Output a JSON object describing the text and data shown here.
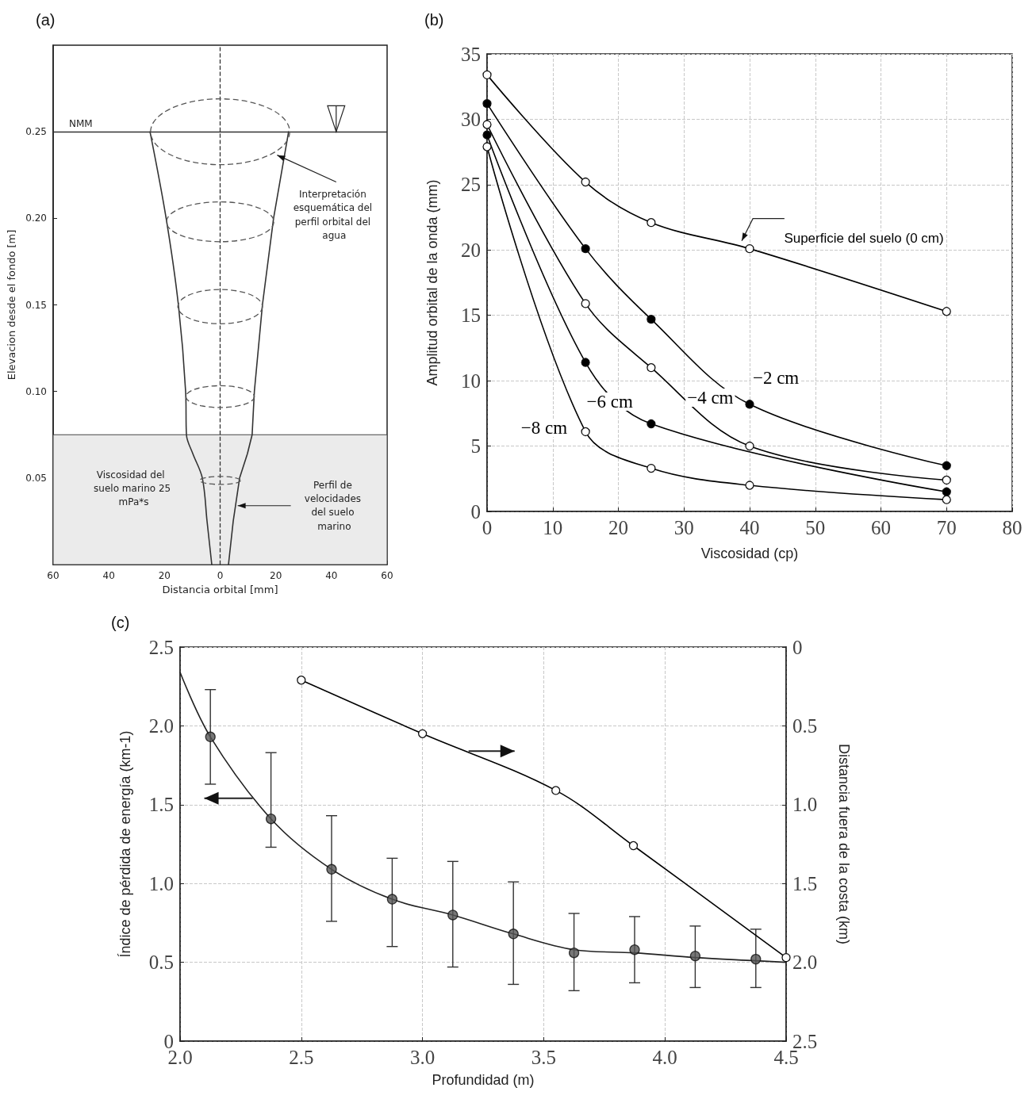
{
  "chart_data": [
    {
      "type": "line",
      "title": "(a)",
      "xlabel": "Distancia orbital [mm]",
      "ylabel": "Elevacion desde el fondo [m]",
      "xlim": [
        -60,
        60
      ],
      "ylim": [
        0,
        0.3
      ],
      "xticks": [
        {
          "value": -60,
          "label": "60"
        },
        {
          "value": -40,
          "label": "40"
        },
        {
          "value": -20,
          "label": "20"
        },
        0,
        20,
        40,
        60
      ],
      "yticks": [
        0.05,
        {
          "value": 0.1,
          "label": "0.10"
        },
        0.15,
        {
          "value": 0.2,
          "label": "0.20"
        },
        0.25
      ],
      "grid": false,
      "legend": false,
      "marker": "none",
      "ref_lines": [
        {
          "axis": "y",
          "value": 0.25,
          "label": "NMM",
          "color": "#333333",
          "line_style": "solid"
        },
        {
          "axis": "x",
          "value": 0,
          "color": "#333333",
          "line_style": "dashed"
        }
      ],
      "bands": [
        {
          "axis": "y",
          "from": 0,
          "to": 0.075,
          "color": "#ebebeb"
        }
      ],
      "annotations": [
        "Interpretación esquemática del perfil orbital del agua",
        "Viscosidad del suelo marino 25 mPa*s",
        "Perfil de velocidades del suelo marino"
      ],
      "series": [
        {
          "color": "#333333",
          "x": [
            -25.2,
            -19.4,
            -15.0,
            -12.4,
            -12.1,
            -9.8,
            -6.4,
            -4.7,
            -3.0
          ],
          "values": [
            0.25,
            0.2,
            0.15,
            0.1,
            0.075,
            0.064,
            0.05,
            0.025,
            0
          ]
        },
        {
          "color": "#333333",
          "x": [
            24.6,
            19.2,
            15.2,
            12.3,
            11.5,
            9.8,
            7.0,
            4.7,
            3.0
          ],
          "values": [
            0.25,
            0.2,
            0.15,
            0.1,
            0.075,
            0.064,
            0.05,
            0.025,
            0
          ]
        }
      ]
    },
    {
      "type": "line",
      "title": "(b)",
      "xlabel": "Viscosidad (cp)",
      "ylabel": "Amplitud orbital de la onda (mm)",
      "xlim": [
        0,
        80
      ],
      "ylim": [
        0,
        35
      ],
      "xticks": [
        0,
        10,
        20,
        30,
        40,
        50,
        60,
        70,
        80
      ],
      "yticks": [
        0,
        5,
        10,
        15,
        20,
        25,
        30,
        35
      ],
      "grid": true,
      "legend": false,
      "marker": "circle",
      "series": [
        {
          "name": "Superficie del suelo (0 cm)",
          "color": "#000000",
          "colors": [
            "#ffffff",
            "#ffffff",
            "#ffffff",
            "#ffffff",
            "#ffffff"
          ],
          "x": [
            0,
            15,
            25,
            40,
            70
          ],
          "values": [
            33.4,
            25.2,
            22.1,
            20.1,
            15.3
          ]
        },
        {
          "name": "−2 cm",
          "color": "#000000",
          "x": [
            0,
            15,
            25,
            40,
            70
          ],
          "values": [
            31.2,
            20.1,
            14.7,
            8.2,
            3.5
          ]
        },
        {
          "name": "−4 cm",
          "color": "#000000",
          "colors": [
            "#ffffff",
            "#ffffff",
            "#ffffff",
            "#ffffff",
            "#ffffff"
          ],
          "x": [
            0,
            15,
            25,
            40,
            70
          ],
          "values": [
            29.6,
            15.9,
            11.0,
            5.0,
            2.4
          ]
        },
        {
          "name": "−6 cm",
          "color": "#000000",
          "x": [
            0,
            15,
            25,
            70
          ],
          "values": [
            28.8,
            11.4,
            6.7,
            1.5
          ]
        },
        {
          "name": "−8 cm",
          "color": "#000000",
          "colors": [
            "#ffffff",
            "#ffffff",
            "#ffffff",
            "#ffffff",
            "#ffffff"
          ],
          "x": [
            0,
            15,
            25,
            40,
            70
          ],
          "values": [
            27.9,
            6.1,
            3.3,
            2.0,
            0.9
          ]
        }
      ]
    },
    {
      "type": "line",
      "title": "(c)",
      "xlabel": "Profundidad (m)",
      "ylabel": "Índice de pérdida de energía (km-1)",
      "y2label": "Distancia fuera de la costa (km)",
      "xlim": [
        2,
        4.5
      ],
      "ylim": [
        0,
        2.5
      ],
      "y2lim": [
        2.5,
        0
      ],
      "xticks": [
        {
          "value": 2,
          "label": "2.0"
        },
        2.5,
        {
          "value": 3,
          "label": "3.0"
        },
        3.5,
        {
          "value": 4,
          "label": "4.0"
        },
        4.5
      ],
      "yticks": [
        0,
        0.5,
        {
          "value": 1,
          "label": "1.0"
        },
        1.5,
        {
          "value": 2,
          "label": "2.0"
        },
        2.5
      ],
      "y2ticks": [
        0,
        0.5,
        {
          "value": 1,
          "label": "1.0"
        },
        1.5,
        {
          "value": 2,
          "label": "2.0"
        },
        2.5
      ],
      "grid": true,
      "legend": false,
      "marker": "circle",
      "series": [
        {
          "type": "scatter",
          "color": "#555555",
          "x": [
            2.125,
            2.375,
            2.625,
            2.875,
            3.125,
            3.375,
            3.625,
            3.875,
            4.125,
            4.375
          ],
          "values": [
            1.93,
            1.41,
            1.09,
            0.9,
            0.8,
            0.68,
            0.56,
            0.58,
            0.54,
            0.52
          ],
          "errors": [
            [
              1.63,
              2.23
            ],
            [
              1.23,
              1.83
            ],
            [
              0.76,
              1.43
            ],
            [
              0.6,
              1.16
            ],
            [
              0.47,
              1.14
            ],
            [
              0.36,
              1.01
            ],
            [
              0.32,
              0.81
            ],
            [
              0.37,
              0.79
            ],
            [
              0.34,
              0.73
            ],
            [
              0.34,
              0.71
            ]
          ]
        },
        {
          "type": "line",
          "marker": "none",
          "color": "#222222",
          "x": [
            2.0,
            2.125,
            2.375,
            2.625,
            2.875,
            3.125,
            3.375,
            3.625,
            3.875,
            4.125,
            4.375,
            4.5
          ],
          "values": [
            2.34,
            1.93,
            1.41,
            1.09,
            0.9,
            0.8,
            0.68,
            0.58,
            0.56,
            0.53,
            0.51,
            0.5
          ]
        },
        {
          "type": "line",
          "axis": "y2",
          "color": "#000000",
          "colors": [
            "#ffffff",
            "#ffffff",
            "#ffffff",
            "#ffffff",
            "#ffffff"
          ],
          "x": [
            2.5,
            3.0,
            3.55,
            3.87,
            4.5
          ],
          "values": [
            0.21,
            0.55,
            0.91,
            1.26,
            1.97
          ]
        }
      ]
    }
  ]
}
